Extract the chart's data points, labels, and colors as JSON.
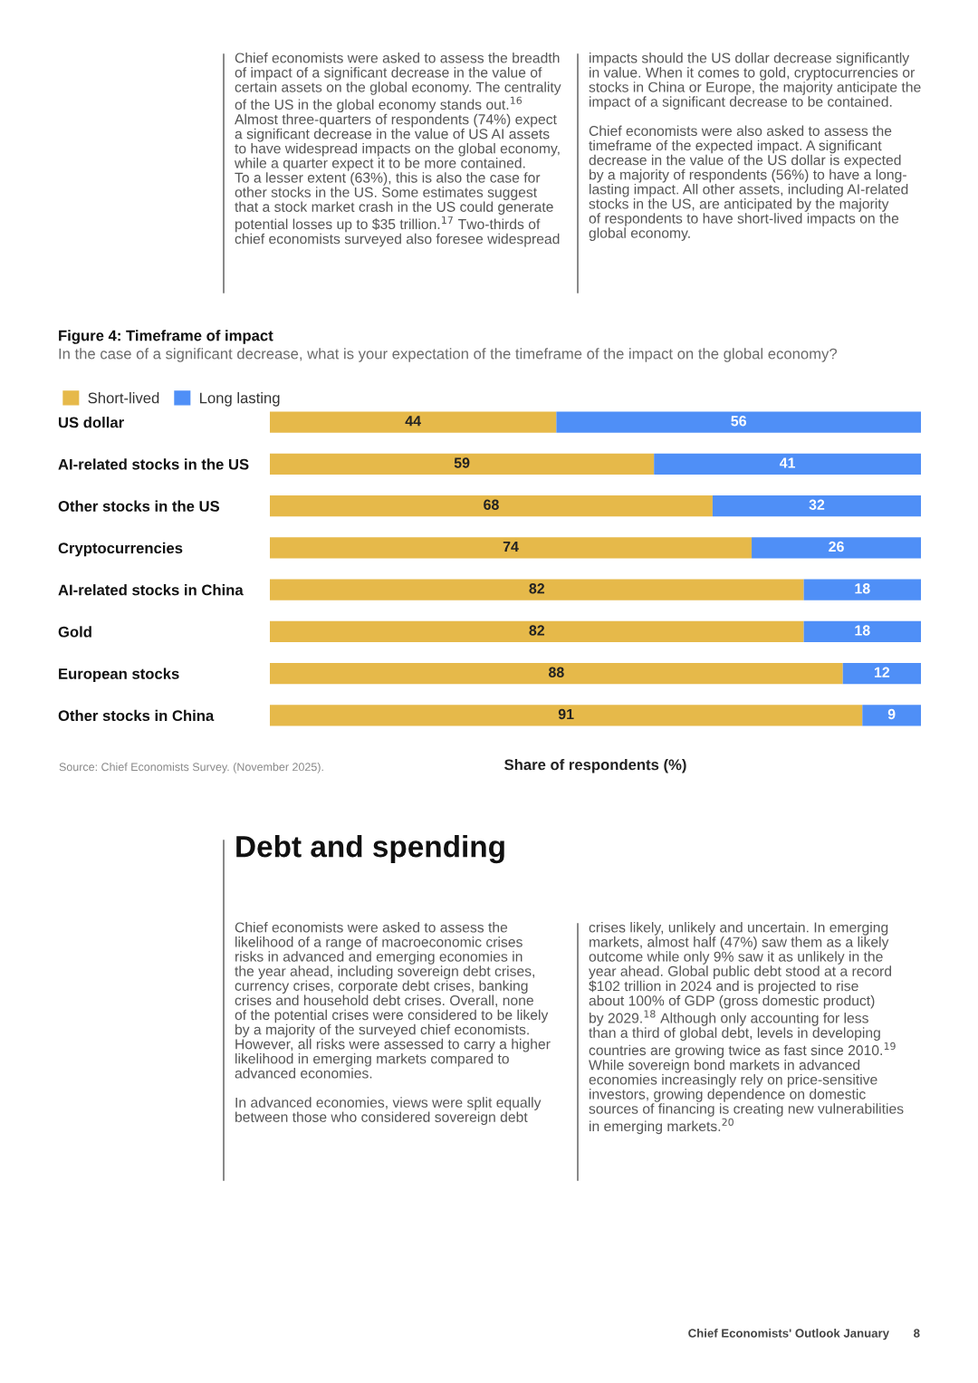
{
  "chart_data": {
    "type": "bar",
    "orientation": "horizontal",
    "stacked": true,
    "title": "Figure 4: Timeframe of impact",
    "subtitle": "In the case of a significant decrease, what is your expectation of the timeframe of the impact on the global economy?",
    "xlabel": "Share of respondents (%)",
    "categories": [
      "US dollar",
      "AI-related stocks in the US",
      "Other stocks in the US",
      "Cryptocurrencies",
      "AI-related stocks in China",
      "Gold",
      "European stocks",
      "Other stocks in China"
    ],
    "series": [
      {
        "name": "Short-lived",
        "color": "#e6b94a",
        "values": [
          44,
          59,
          68,
          74,
          82,
          82,
          88,
          91
        ]
      },
      {
        "name": "Long lasting",
        "color": "#4f8ff7",
        "values": [
          56,
          41,
          32,
          26,
          18,
          18,
          12,
          9
        ]
      }
    ],
    "xlim": [
      0,
      100
    ],
    "tick_labels": "y",
    "data_labels": true,
    "legend": "top left",
    "grid": false,
    "annotations": [
      "Chief economists were asked to assess the breadth\nof impact of a significant decrease in the value of\ncertain assets on the global economy. The centrality\nof the US in the global economy stands out.$^{16}$\nAlmost three-quarters of respondents (74%) expect\na significant decrease in the value of US AI assets\nto have widespread impacts on the global economy,\nwhile a quarter expect it to be more contained.\nTo a lesser extent (63%), this is also the case for\nother stocks in the US. Some estimates suggest\nthat a stock market crash in the US could generate\npotential losses up to $35 trillion.$^{17}$ Two-thirds of\nchief economists surveyed also foresee widespread",
      "impacts should the US dollar decrease significantly\nin value. When it comes to gold, cryptocurrencies or\nstocks in China or Europe, the majority anticipate the\nimpact of a significant decrease to be contained.\n\nChief economists were also asked to assess the\ntimeframe of the expected impact. A significant\ndecrease in the value of the US dollar is expected\nby a majority of respondents (56%) to have a long-\nlasting impact. All other assets, including AI-related\nstocks in the US, are anticipated by the majority\nof respondents to have short-lived impacts on the\nglobal economy.",
      "Source: Chief Economists Survey. (November 2025).",
      "Debt and spending",
      "Chief economists were asked to assess the\nlikelihood of a range of macroeconomic crises\nrisks in advanced and emerging economies in\nthe year ahead, including sovereign debt crises,\ncurrency crises, corporate debt crises, banking\ncrises and household debt crises. Overall, none\nof the potential crises were considered to be likely\nby a majority of the surveyed chief economists.\nHowever, all risks were assessed to carry a higher\nlikelihood in emerging markets compared to\nadvanced economies.\n\nIn advanced economies, views were split equally\nbetween those who considered sovereign debt",
      "crises likely, unlikely and uncertain. In emerging\nmarkets, almost half (47%) saw them as a likely\noutcome while only 9% saw it as unlikely in the\nyear ahead. Global public debt stood at a record\n$102 trillion in 2024 and is projected to rise\nabout 100% of GDP (gross domestic product)\nby 2029.$^{18}$ Although only accounting for less\nthan a third of global debt, levels in developing\ncountries are growing twice as fast since 2010.$^{19}$\nWhile sovereign bond markets in advanced\neconomies increasingly rely on price-sensitive\ninvestors, growing dependence on domestic\nsources of financing is creating new vulnerabilities\nin emerging markets.$^{20}$",
      "Chief Economists' Outlook January",
      "8"
    ]
  }
}
